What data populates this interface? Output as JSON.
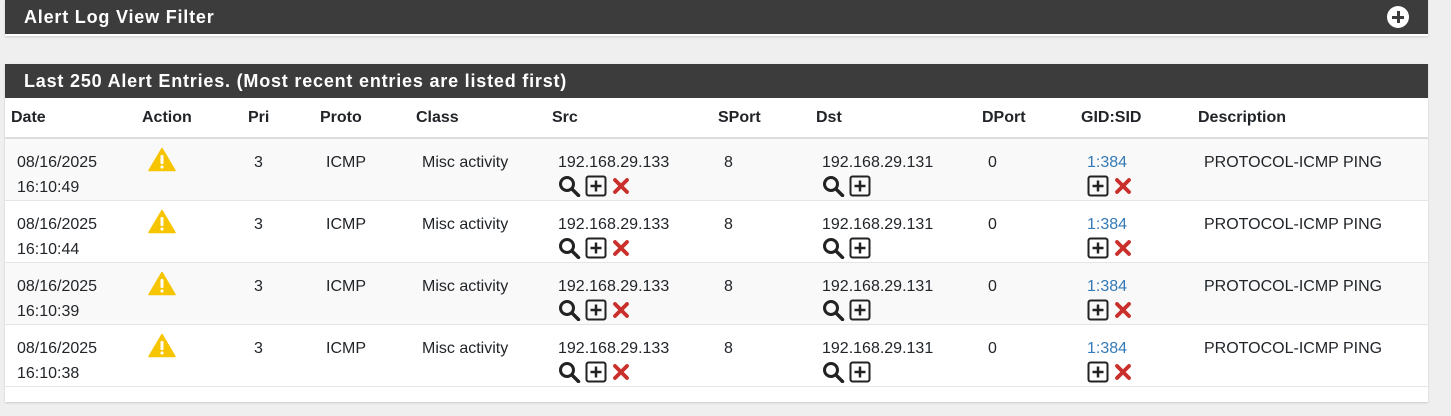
{
  "filter_panel": {
    "title": "Alert Log View Filter",
    "toggle_icon": "plus-circle-icon"
  },
  "alerts_panel": {
    "title": "Last 250 Alert Entries. (Most recent entries are listed first)",
    "columns": [
      "Date",
      "Action",
      "Pri",
      "Proto",
      "Class",
      "Src",
      "SPort",
      "Dst",
      "DPort",
      "GID:SID",
      "Description"
    ],
    "rows": [
      {
        "date": "08/16/2025",
        "time": "16:10:49",
        "action_icon": "warning-icon",
        "pri": "3",
        "proto": "ICMP",
        "class": "Misc activity",
        "src": "192.168.29.133",
        "sport": "8",
        "dst": "192.168.29.131",
        "dport": "0",
        "gidsid": "1:384",
        "description": "PROTOCOL-ICMP PING"
      },
      {
        "date": "08/16/2025",
        "time": "16:10:44",
        "action_icon": "warning-icon",
        "pri": "3",
        "proto": "ICMP",
        "class": "Misc activity",
        "src": "192.168.29.133",
        "sport": "8",
        "dst": "192.168.29.131",
        "dport": "0",
        "gidsid": "1:384",
        "description": "PROTOCOL-ICMP PING"
      },
      {
        "date": "08/16/2025",
        "time": "16:10:39",
        "action_icon": "warning-icon",
        "pri": "3",
        "proto": "ICMP",
        "class": "Misc activity",
        "src": "192.168.29.133",
        "sport": "8",
        "dst": "192.168.29.131",
        "dport": "0",
        "gidsid": "1:384",
        "description": "PROTOCOL-ICMP PING"
      },
      {
        "date": "08/16/2025",
        "time": "16:10:38",
        "action_icon": "warning-icon",
        "pri": "3",
        "proto": "ICMP",
        "class": "Misc activity",
        "src": "192.168.29.133",
        "sport": "8",
        "dst": "192.168.29.131",
        "dport": "0",
        "gidsid": "1:384",
        "description": "PROTOCOL-ICMP PING"
      }
    ]
  },
  "colors": {
    "heading_bg": "#3c3c3c",
    "link": "#337ab7",
    "warning": "#f7c500",
    "remove": "#c9302c"
  }
}
